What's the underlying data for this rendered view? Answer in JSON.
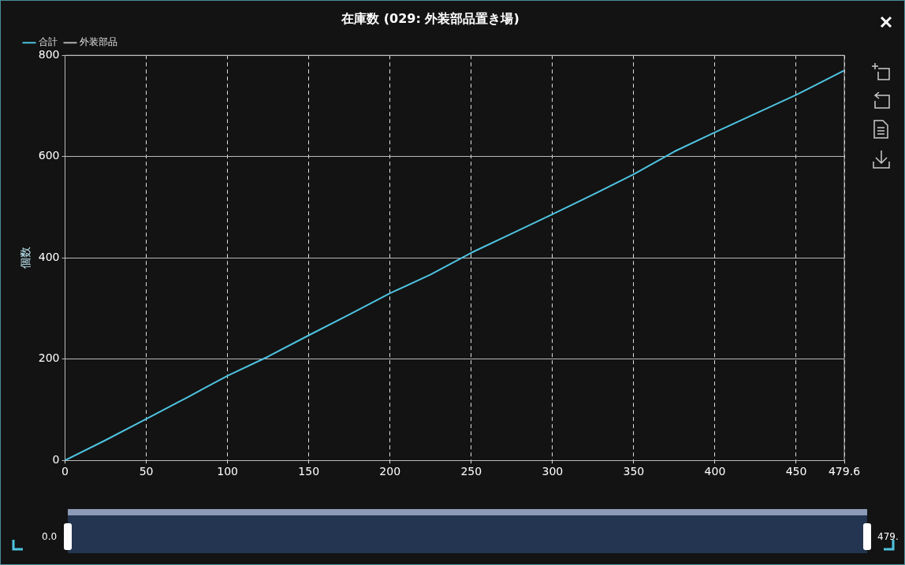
{
  "chart_data": {
    "type": "line",
    "title": "在庫数 (029: 外装部品置き場)",
    "ylabel": "個数",
    "x": [
      0,
      25,
      50,
      75,
      100,
      125,
      150,
      175,
      200,
      225,
      250,
      275,
      300,
      325,
      350,
      375,
      400,
      425,
      450,
      479.6
    ],
    "series": [
      {
        "name": "合計",
        "color": "#4ec3e0",
        "values": [
          0,
          40,
          82,
          124,
          167,
          205,
          247,
          288,
          330,
          367,
          410,
          448,
          486,
          525,
          565,
          610,
          648,
          685,
          722,
          770
        ]
      },
      {
        "name": "外装部品",
        "color": "#b0b0b0",
        "values": [
          null,
          null,
          null,
          null,
          null,
          null,
          null,
          null,
          null,
          null,
          null,
          null,
          null,
          null,
          null,
          null,
          null,
          null,
          null,
          null
        ]
      }
    ],
    "xlim": [
      0,
      479.6
    ],
    "xticks": [
      0,
      50,
      100,
      150,
      200,
      250,
      300,
      350,
      400,
      450,
      479.6
    ],
    "ylim": [
      0,
      800
    ],
    "yticks": [
      0,
      200,
      400,
      600,
      800
    ],
    "annotations": [
      "0.0",
      "479."
    ],
    "grid": true,
    "legend": "top left",
    "marker": "none",
    "line_style": "solid"
  }
}
